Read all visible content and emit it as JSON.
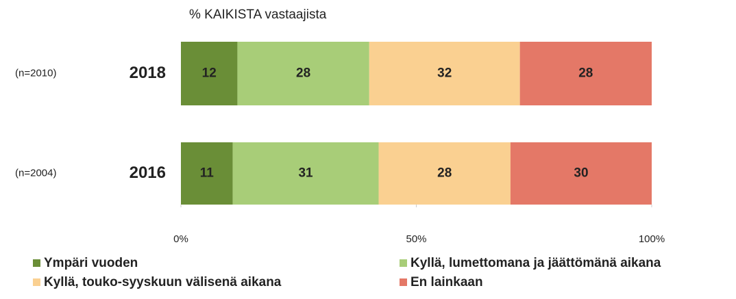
{
  "chart_data": {
    "type": "stacked_barh",
    "title": "% KAIKISTA vastaajista",
    "categories": [
      "2018",
      "2016"
    ],
    "category_notes": [
      "(n=2010)",
      "(n=2004)"
    ],
    "series": [
      {
        "name": "Ympäri vuoden",
        "color": "#6a8e37",
        "values": [
          12,
          11
        ]
      },
      {
        "name": "Kyllä, lumettomana ja jäättömänä aikana",
        "color": "#a8cd78",
        "values": [
          28,
          31
        ]
      },
      {
        "name": "Kyllä, touko-syyskuun välisenä aikana",
        "color": "#fad091",
        "values": [
          32,
          28
        ]
      },
      {
        "name": "En lainkaan",
        "color": "#e47867",
        "values": [
          28,
          30
        ]
      }
    ],
    "xlim": [
      0,
      100
    ],
    "xticks": [
      {
        "value": 0,
        "label": "0%"
      },
      {
        "value": 50,
        "label": "50%"
      },
      {
        "value": 100,
        "label": "100%"
      }
    ]
  }
}
